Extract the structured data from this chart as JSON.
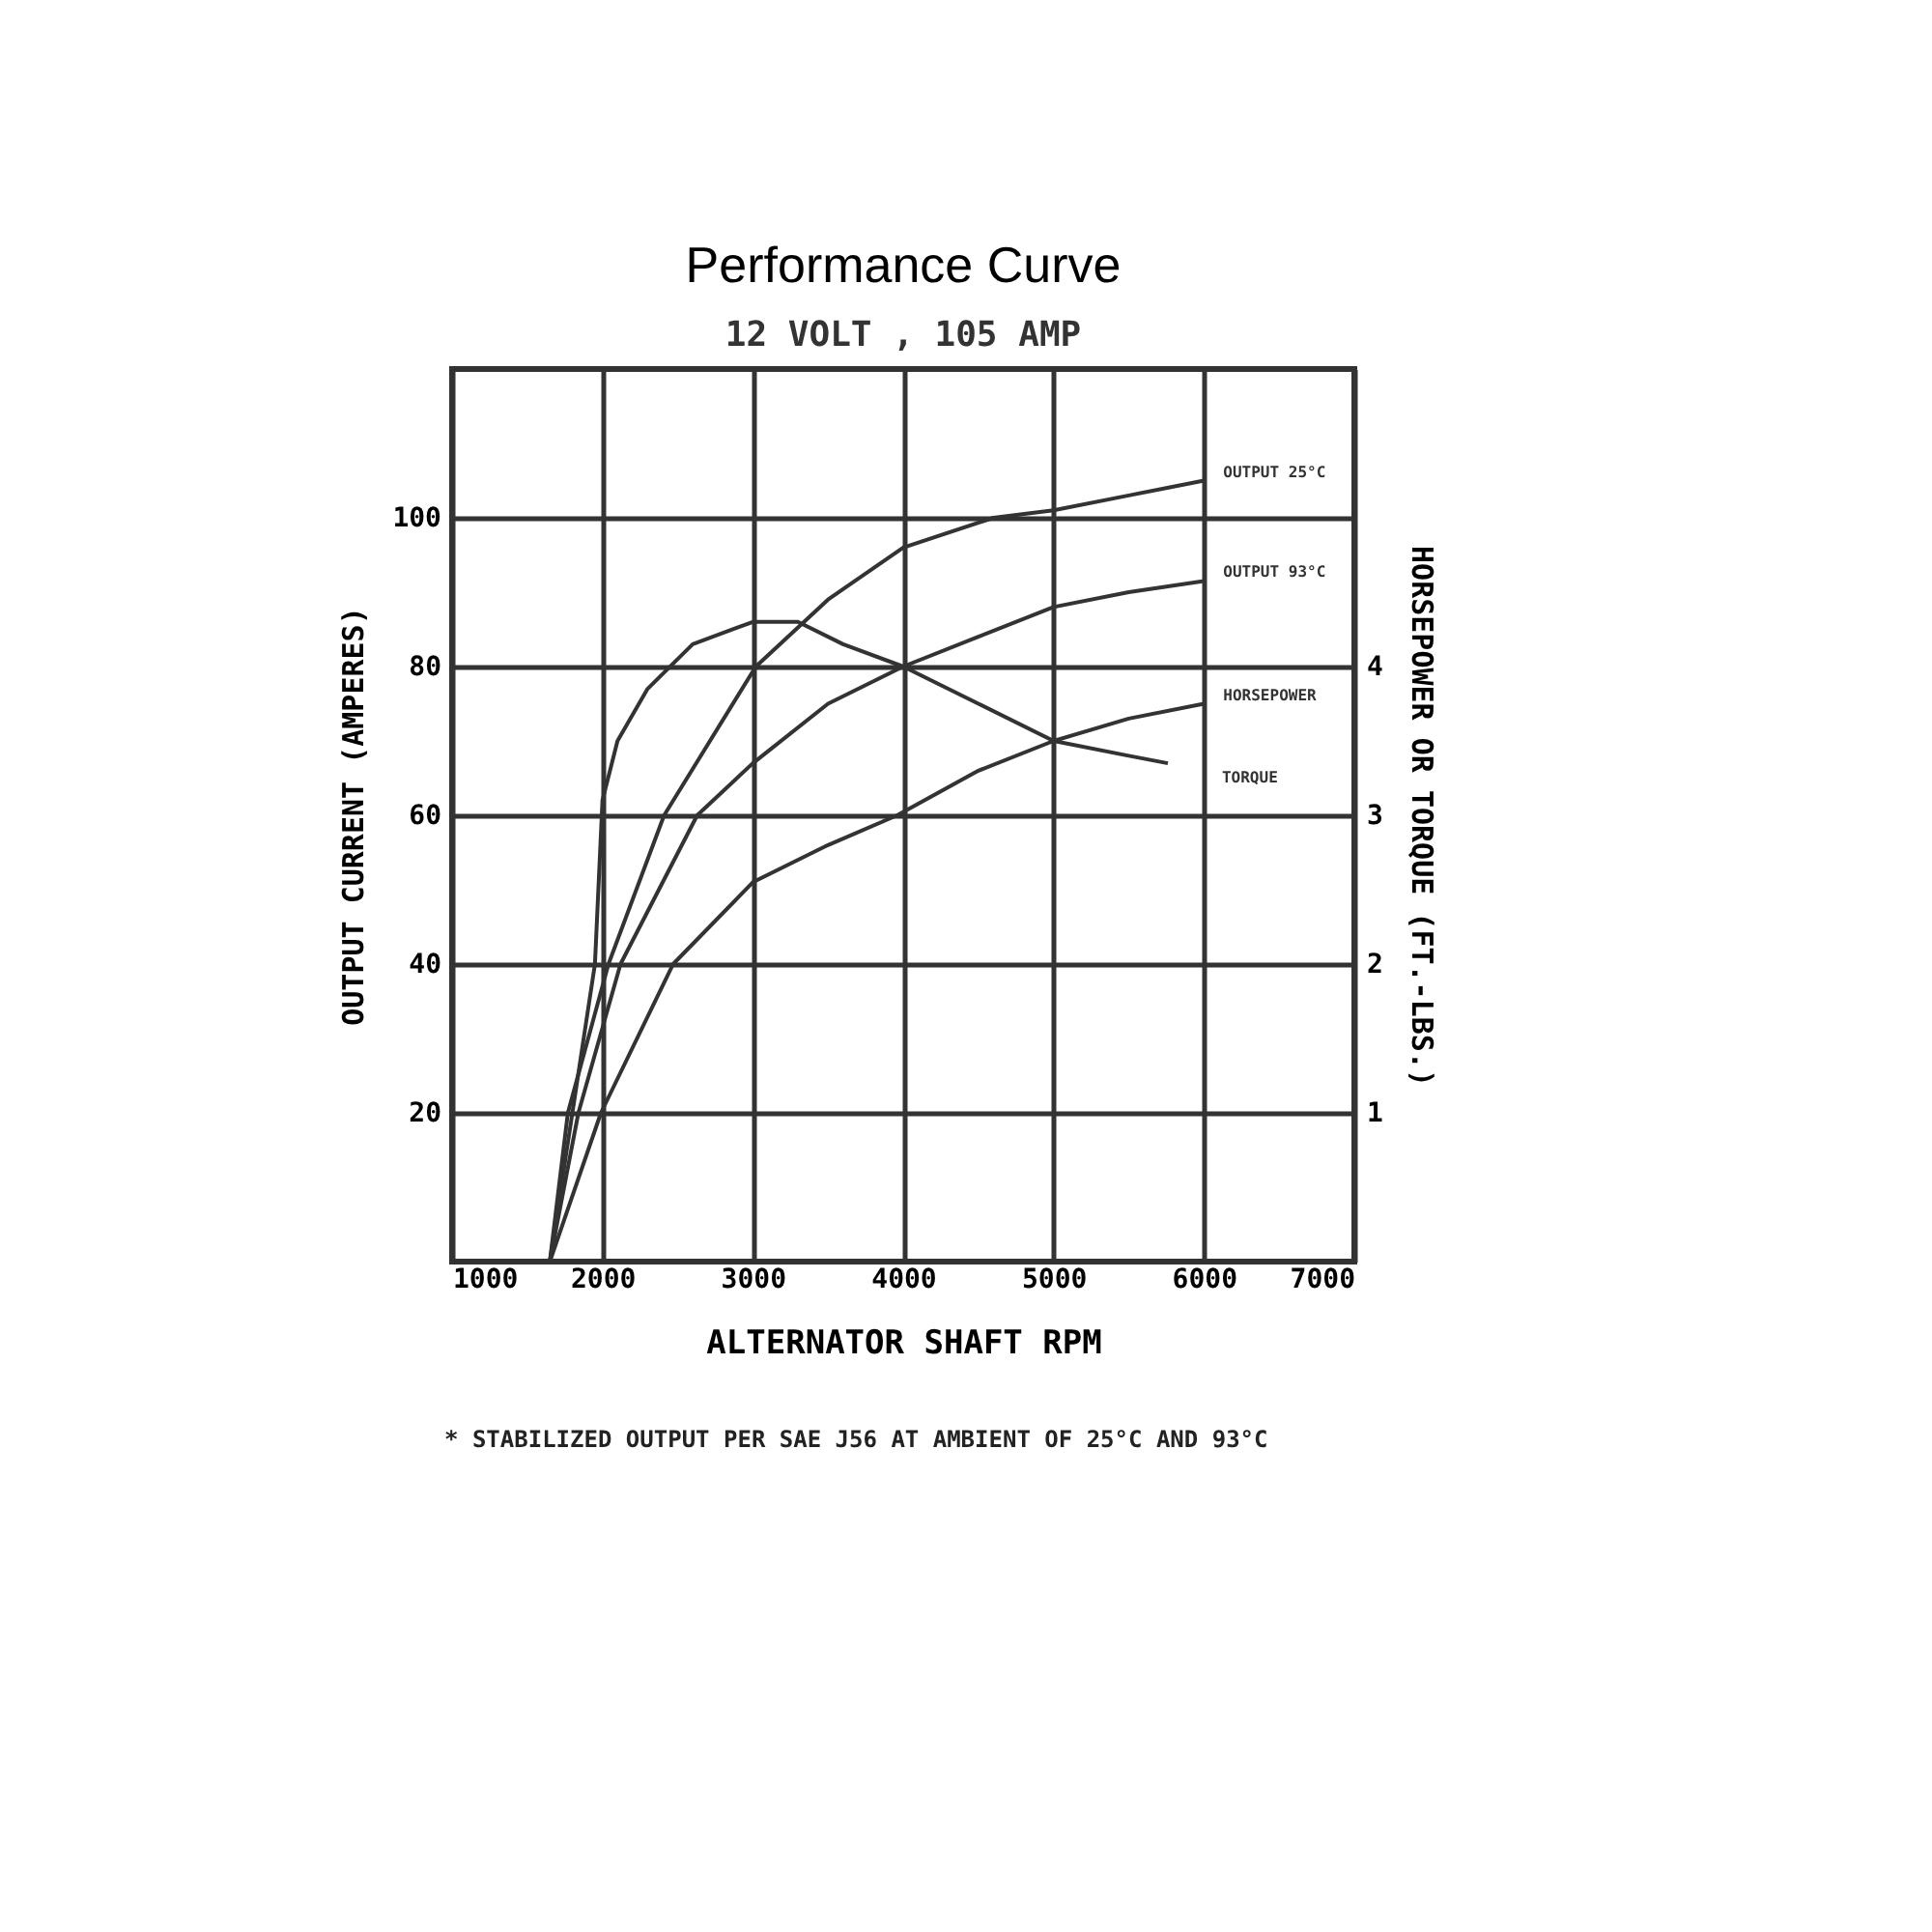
{
  "chart_data": {
    "type": "line",
    "title": "Performance Curve",
    "subtitle": "12 VOLT , 105 AMP",
    "xlabel": "ALTERNATOR SHAFT RPM",
    "ylabel": "OUTPUT CURRENT (AMPERES)",
    "y2label": "HORSEPOWER OR TORQUE (FT.-LBS.)",
    "xlim": [
      1000,
      7000
    ],
    "xticks": [
      1000,
      2000,
      3000,
      4000,
      5000,
      6000,
      7000
    ],
    "ylim": [
      0,
      120
    ],
    "yticks": [
      20,
      40,
      60,
      80,
      100
    ],
    "y2lim": [
      0,
      6
    ],
    "y2ticks": [
      1,
      2,
      3,
      4
    ],
    "grid": true,
    "marker": "none",
    "line_style": "solid",
    "series": [
      {
        "name": "OUTPUT 25°C",
        "color": "#333333",
        "x": [
          1650,
          1770,
          2040,
          2410,
          3020,
          3500,
          4000,
          4600,
          5000,
          5500,
          6000
        ],
        "values": [
          0,
          20,
          40,
          60,
          80,
          89,
          96,
          100,
          101,
          103,
          105
        ]
      },
      {
        "name": "OUTPUT 93°C",
        "color": "#333333",
        "x": [
          1650,
          1840,
          2120,
          2630,
          3000,
          3500,
          4000,
          4500,
          5000,
          5500,
          6000
        ],
        "values": [
          0,
          20,
          40,
          60,
          67,
          75,
          80,
          84,
          88,
          90,
          91.5
        ]
      },
      {
        "name": "HORSEPOWER",
        "color": "#333333",
        "axis": "y2",
        "x": [
          1650,
          1990,
          2470,
          3000,
          3500,
          3960,
          4500,
          5000,
          5500,
          6000
        ],
        "values": [
          0,
          1,
          2,
          2.55,
          2.8,
          3,
          3.3,
          3.5,
          3.65,
          3.75
        ]
      },
      {
        "name": "TORQUE",
        "color": "#333333",
        "axis": "y2",
        "x": [
          1650,
          1800,
          1950,
          2000,
          2100,
          2300,
          2600,
          3000,
          3300,
          3600,
          4000,
          4500,
          5000,
          5500,
          5760
        ],
        "values": [
          0,
          1,
          2,
          3.1,
          3.5,
          3.85,
          4.15,
          4.3,
          4.3,
          4.15,
          4,
          3.75,
          3.5,
          3.4,
          3.35
        ]
      }
    ],
    "annotations": [
      "* STABILIZED OUTPUT PER SAE J56 AT AMBIENT OF 25°C AND 93°C"
    ]
  }
}
